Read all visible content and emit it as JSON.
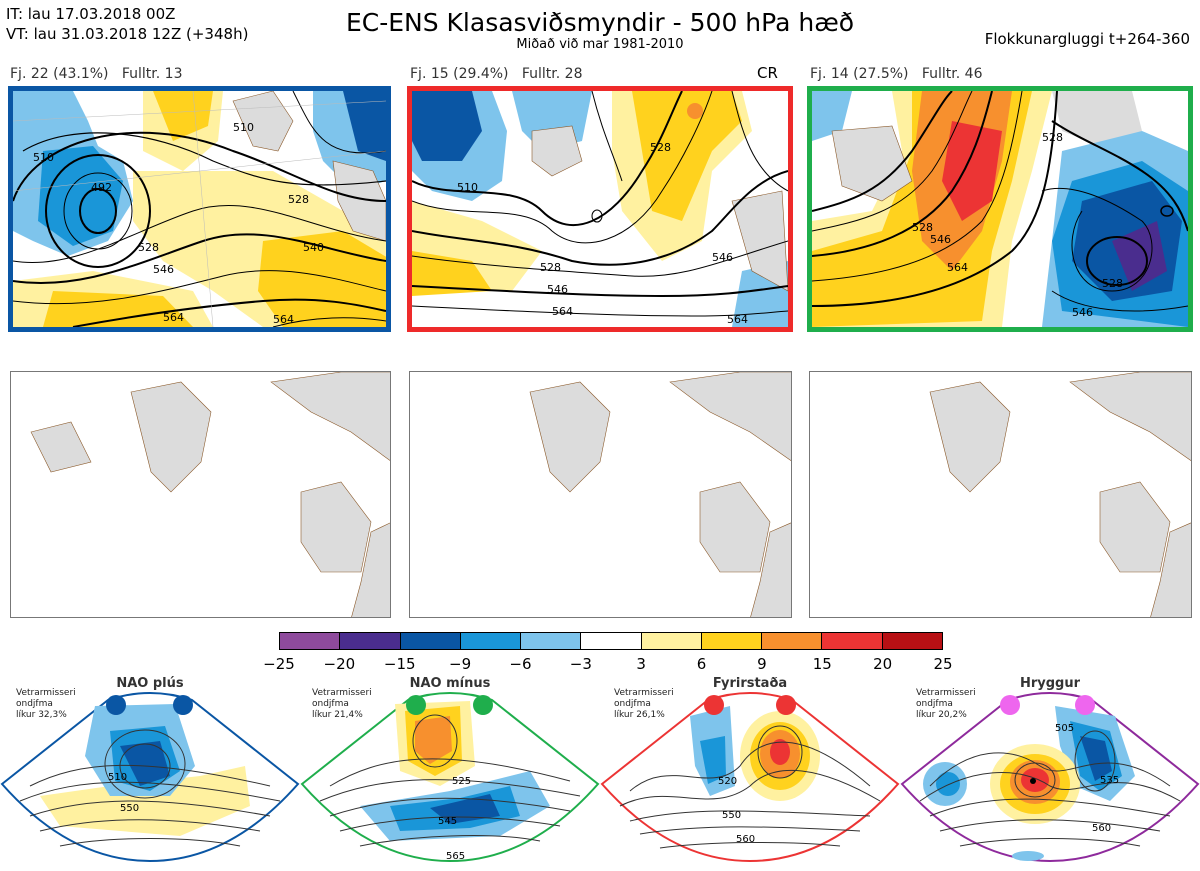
{
  "header": {
    "it_line": "IT: lau 17.03.2018 00Z",
    "vt_line": "VT: lau 31.03.2018 12Z  (+348h)",
    "title": "EC-ENS Klasasviðsmyndir - 500 hPa hæð",
    "subtitle": "Miðað við mar 1981-2010",
    "window": "Flokkunargluggi t+264-360"
  },
  "colors": {
    "light_gray_land": "#dcdcdc",
    "map_background": "#ffffff"
  },
  "panels": [
    {
      "label": "Fj. 22 (43.1%)   Fulltr. 13",
      "tag": "",
      "border_color": "#0a56a4",
      "contour_labels": [
        "510",
        "510",
        "492",
        "528",
        "546",
        "540",
        "528",
        "564",
        "564"
      ]
    },
    {
      "label": "Fj. 15 (29.4%)   Fulltr. 28",
      "tag": "CR",
      "border_color": "#ee2a2a",
      "contour_labels": [
        "510",
        "528",
        "528",
        "546",
        "564",
        "546",
        "564"
      ]
    },
    {
      "label": "Fj. 14 (27.5%)   Fulltr. 46",
      "tag": "",
      "border_color": "#1fae4c",
      "contour_labels": [
        "528",
        "528",
        "546",
        "564",
        "528",
        "546"
      ]
    }
  ],
  "colorbar": {
    "colors": [
      "#8e4a9c",
      "#4a2d8e",
      "#0a56a4",
      "#1a96d8",
      "#7ec4ec",
      "#ffffff",
      "#fff1a0",
      "#ffd21e",
      "#f7902e",
      "#ec3434",
      "#b81014"
    ],
    "ticks": [
      "−25",
      "−20",
      "−15",
      "−9",
      "−6",
      "−3",
      "3",
      "6",
      "9",
      "15",
      "20",
      "25"
    ]
  },
  "regimes": [
    {
      "title": "NAO plús",
      "note_lines": [
        "Vetrarmisseri",
        "ondjfma",
        "líkur 32,3%"
      ],
      "border_color": "#0a56a4",
      "dot_color": "#0a56a4",
      "contour_labels": [
        "510",
        "550"
      ]
    },
    {
      "title": "NAO mínus",
      "note_lines": [
        "Vetrarmisseri",
        "ondjfma",
        "líkur 21,4%"
      ],
      "border_color": "#1fae4c",
      "dot_color": "#1fae4c",
      "contour_labels": [
        "525",
        "545",
        "565"
      ]
    },
    {
      "title": "Fyrirstaða",
      "note_lines": [
        "Vetrarmisseri",
        "ondjfma",
        "líkur 26,1%"
      ],
      "border_color": "#ec3434",
      "dot_color": "#ec3434",
      "contour_labels": [
        "520",
        "550",
        "560"
      ]
    },
    {
      "title": "Hryggur",
      "note_lines": [
        "Vetrarmisseri",
        "ondjfma",
        "líkur 20,2%"
      ],
      "border_color": "#8e2a9c",
      "dot_color": "#ee66ee",
      "contour_labels": [
        "505",
        "535",
        "560"
      ]
    }
  ]
}
